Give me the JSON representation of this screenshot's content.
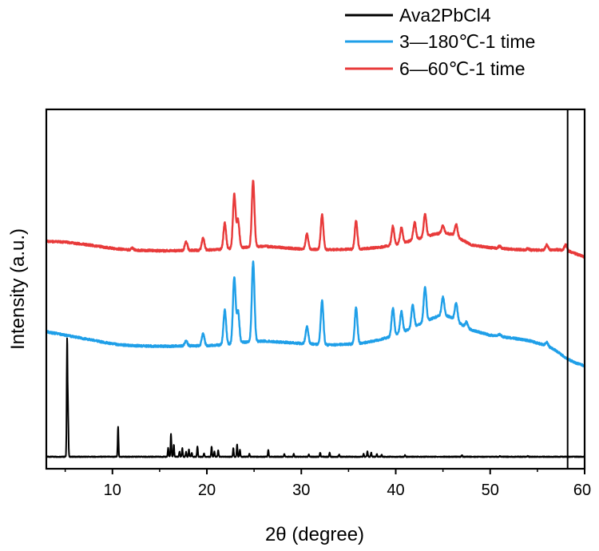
{
  "chart_data": {
    "type": "line",
    "title": "",
    "xlabel": "2θ (degree)",
    "ylabel": "Intensity (a.u.)",
    "xlim": [
      3,
      60
    ],
    "ylim": [
      0,
      100
    ],
    "xticks": [
      10,
      20,
      30,
      40,
      50,
      60
    ],
    "yticks_shown": false,
    "grid": false,
    "legend_placement": "top-right, above plot",
    "vline_x": 58.2,
    "series": [
      {
        "name": "Ava2PbCl4",
        "color": "#000000",
        "baseline": 0,
        "peaks": [
          [
            5.2,
            33.0
          ],
          [
            5.3,
            12.0
          ],
          [
            10.6,
            8.5
          ],
          [
            15.9,
            2.5
          ],
          [
            16.2,
            6.5
          ],
          [
            16.5,
            3.5
          ],
          [
            17.1,
            1.5
          ],
          [
            17.4,
            2.5
          ],
          [
            17.8,
            1.5
          ],
          [
            18.1,
            2.0
          ],
          [
            18.4,
            1.2
          ],
          [
            19.0,
            3.0
          ],
          [
            19.7,
            1.0
          ],
          [
            20.5,
            3.0
          ],
          [
            20.8,
            1.5
          ],
          [
            21.2,
            1.8
          ],
          [
            22.8,
            2.5
          ],
          [
            23.2,
            3.5
          ],
          [
            23.5,
            2.0
          ],
          [
            24.5,
            0.8
          ],
          [
            26.5,
            2.0
          ],
          [
            28.2,
            0.8
          ],
          [
            29.2,
            0.8
          ],
          [
            30.8,
            0.6
          ],
          [
            32.0,
            1.2
          ],
          [
            33.0,
            1.2
          ],
          [
            34.0,
            0.6
          ],
          [
            36.6,
            0.8
          ],
          [
            37.0,
            1.5
          ],
          [
            37.4,
            1.2
          ],
          [
            38.0,
            0.8
          ],
          [
            38.5,
            0.6
          ],
          [
            41.0,
            0.5
          ],
          [
            47.0,
            0.5
          ],
          [
            51.0,
            0.3
          ],
          [
            54.0,
            0.3
          ]
        ]
      },
      {
        "name": "3—180℃-1 time",
        "color": "#1f9fe8",
        "baseline": [
          [
            3,
            36.0
          ],
          [
            5,
            35.0
          ],
          [
            8,
            33.5
          ],
          [
            10,
            32.5
          ],
          [
            12,
            32.0
          ],
          [
            15,
            31.8
          ],
          [
            18,
            31.9
          ],
          [
            20,
            32.0
          ],
          [
            22,
            32.3
          ],
          [
            24,
            33.0
          ],
          [
            26,
            33.3
          ],
          [
            28,
            33.0
          ],
          [
            30,
            32.6
          ],
          [
            33,
            32.2
          ],
          [
            36,
            32.5
          ],
          [
            38,
            33.5
          ],
          [
            40,
            35.0
          ],
          [
            42,
            37.5
          ],
          [
            44,
            40.0
          ],
          [
            45,
            41.0
          ],
          [
            46,
            40.0
          ],
          [
            47,
            38.0
          ],
          [
            48,
            36.5
          ],
          [
            50,
            35.0
          ],
          [
            52,
            34.3
          ],
          [
            54,
            33.5
          ],
          [
            56,
            32.0
          ],
          [
            57,
            30.5
          ],
          [
            58,
            28.5
          ],
          [
            59,
            27.0
          ],
          [
            60,
            26.2
          ]
        ],
        "peaks": [
          [
            17.8,
            1.5
          ],
          [
            19.6,
            3.5
          ],
          [
            21.9,
            10.0
          ],
          [
            22.9,
            19.0
          ],
          [
            23.3,
            9.0
          ],
          [
            24.9,
            23.0
          ],
          [
            30.6,
            5.0
          ],
          [
            32.2,
            12.5
          ],
          [
            35.8,
            10.5
          ],
          [
            39.7,
            8.0
          ],
          [
            40.6,
            6.0
          ],
          [
            41.8,
            6.5
          ],
          [
            43.1,
            10.0
          ],
          [
            45.0,
            5.0
          ],
          [
            46.4,
            5.0
          ],
          [
            47.5,
            1.5
          ],
          [
            51.0,
            0.5
          ],
          [
            56.0,
            1.0
          ]
        ]
      },
      {
        "name": "6—60℃-1 time",
        "color": "#e83a3a",
        "baseline": [
          [
            3,
            62.0
          ],
          [
            5,
            61.8
          ],
          [
            8,
            60.8
          ],
          [
            10,
            60.0
          ],
          [
            12,
            59.5
          ],
          [
            15,
            59.3
          ],
          [
            18,
            59.4
          ],
          [
            20,
            59.5
          ],
          [
            22,
            59.8
          ],
          [
            24,
            60.3
          ],
          [
            26,
            60.6
          ],
          [
            28,
            60.2
          ],
          [
            30,
            59.8
          ],
          [
            33,
            59.6
          ],
          [
            36,
            59.8
          ],
          [
            38,
            60.2
          ],
          [
            40,
            61.0
          ],
          [
            42,
            62.5
          ],
          [
            44,
            64.0
          ],
          [
            45,
            64.5
          ],
          [
            46,
            64.0
          ],
          [
            47,
            62.5
          ],
          [
            48,
            61.0
          ],
          [
            50,
            60.2
          ],
          [
            52,
            59.8
          ],
          [
            54,
            59.5
          ],
          [
            56,
            59.5
          ],
          [
            57,
            59.6
          ],
          [
            58,
            59.5
          ],
          [
            59,
            58.5
          ],
          [
            60,
            57.5
          ]
        ],
        "peaks": [
          [
            12.1,
            0.6
          ],
          [
            17.8,
            2.5
          ],
          [
            19.6,
            3.5
          ],
          [
            21.9,
            7.5
          ],
          [
            22.9,
            15.5
          ],
          [
            23.3,
            8.0
          ],
          [
            24.9,
            19.0
          ],
          [
            30.6,
            4.5
          ],
          [
            32.2,
            10.0
          ],
          [
            35.8,
            8.0
          ],
          [
            39.7,
            5.5
          ],
          [
            40.6,
            4.5
          ],
          [
            42.0,
            5.0
          ],
          [
            43.1,
            6.5
          ],
          [
            45.0,
            2.0
          ],
          [
            46.4,
            3.5
          ],
          [
            51.0,
            0.6
          ],
          [
            54.0,
            0.4
          ],
          [
            56.0,
            1.5
          ],
          [
            58.0,
            1.5
          ]
        ]
      }
    ]
  }
}
